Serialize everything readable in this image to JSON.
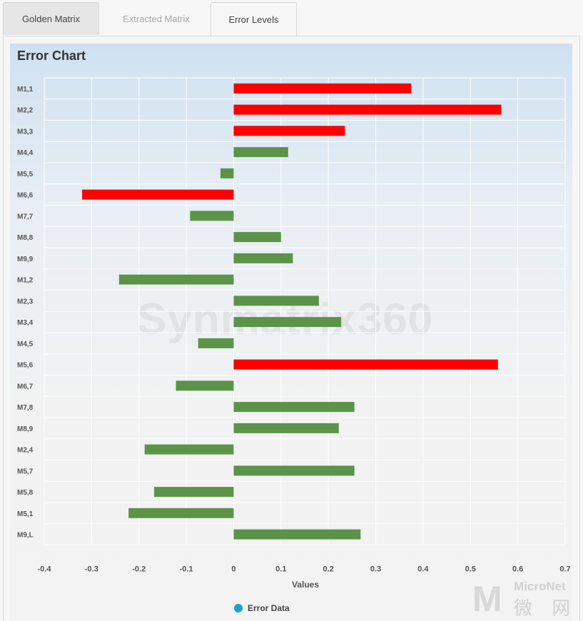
{
  "tabs": [
    {
      "label": "Golden Matrix"
    },
    {
      "label": "Extracted Matrix"
    },
    {
      "label": "Error Levels"
    }
  ],
  "watermark": "Synmatrix360",
  "logo": {
    "en": "MicroNet",
    "cn": "微 网"
  },
  "colors": {
    "over_threshold": "#ff0000",
    "within_threshold": "#5b9449",
    "legend_dot": "#1aa3c8"
  },
  "chart_data": {
    "type": "bar",
    "orientation": "horizontal",
    "title": "Error Chart",
    "xlabel": "Values",
    "ylabel": "",
    "xlim": [
      -0.4,
      0.7
    ],
    "xticks": [
      "-0.4",
      "-0.3",
      "-0.2",
      "-0.1",
      "0",
      "0.1",
      "0.2",
      "0.3",
      "0.4",
      "0.5",
      "0.6",
      "0.7"
    ],
    "grid": true,
    "legend": {
      "entries": [
        "Error Data"
      ],
      "placement": "bottom-center"
    },
    "categories": [
      "M1,1",
      "M2,2",
      "M3,3",
      "M4,4",
      "M5,5",
      "M6,6",
      "M7,7",
      "M8,8",
      "M9,9",
      "M1,2",
      "M2,3",
      "M3,4",
      "M4,5",
      "M5,6",
      "M6,7",
      "M7,8",
      "M8,9",
      "M2,4",
      "M5,7",
      "M5,8",
      "M5,1",
      "M9,L"
    ],
    "series": [
      {
        "name": "Error Data",
        "values": [
          0.375,
          0.565,
          0.235,
          0.115,
          -0.028,
          -0.32,
          -0.092,
          0.1,
          0.125,
          -0.242,
          0.18,
          0.227,
          -0.075,
          0.558,
          -0.122,
          0.255,
          0.222,
          -0.188,
          0.255,
          -0.168,
          -0.222,
          0.268
        ],
        "colors": [
          "#ff0000",
          "#ff0000",
          "#ff0000",
          "#5b9449",
          "#5b9449",
          "#ff0000",
          "#5b9449",
          "#5b9449",
          "#5b9449",
          "#5b9449",
          "#5b9449",
          "#5b9449",
          "#5b9449",
          "#ff0000",
          "#5b9449",
          "#5b9449",
          "#5b9449",
          "#5b9449",
          "#5b9449",
          "#5b9449",
          "#5b9449",
          "#5b9449"
        ]
      }
    ]
  }
}
